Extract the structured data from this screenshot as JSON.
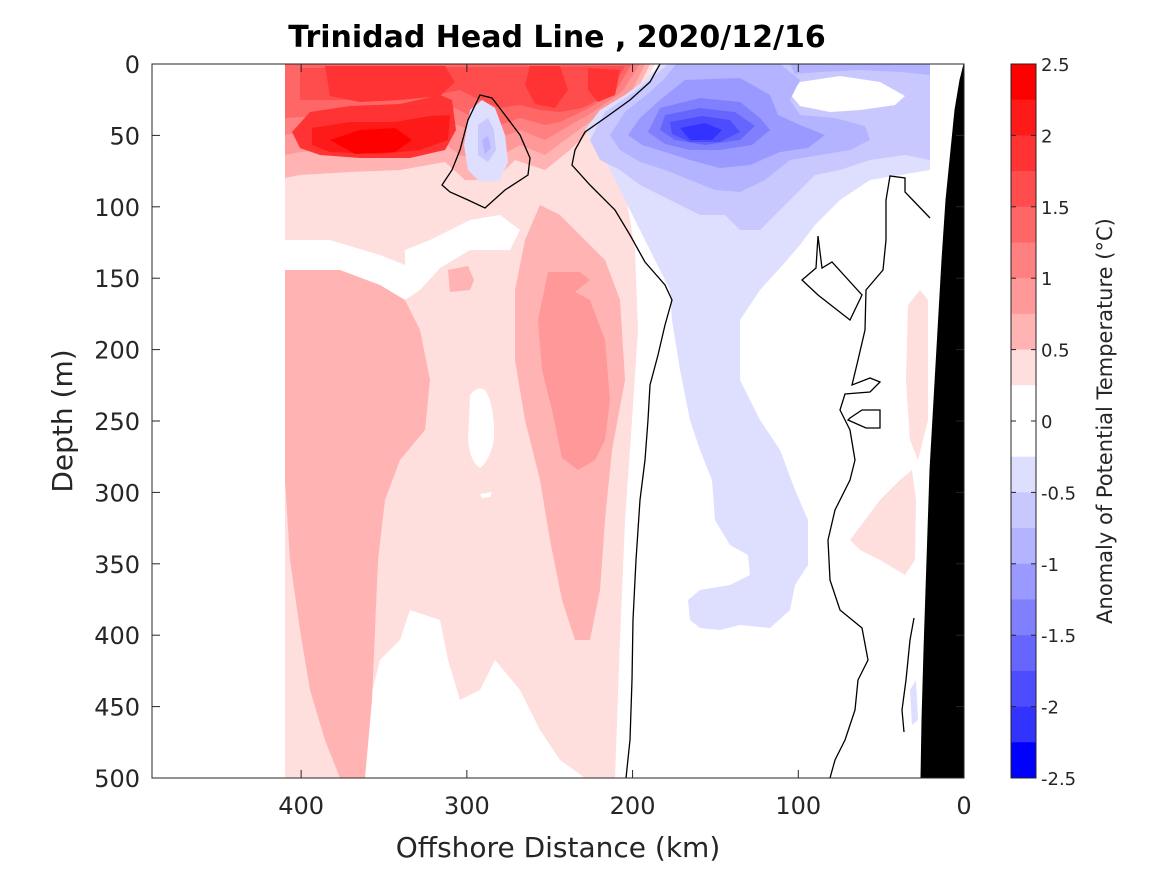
{
  "chart_data": {
    "type": "heatmap",
    "title": "Trinidad Head Line , 2020/12/16",
    "xlabel": "Offshore Distance (km)",
    "ylabel": "Depth (m)",
    "xlim": [
      490,
      0
    ],
    "ylim": [
      500,
      0
    ],
    "x_reversed": true,
    "y_reversed": true,
    "x_ticks": [
      400,
      300,
      200,
      100,
      0
    ],
    "x_tick_labels": [
      "400",
      "300",
      "200",
      "100",
      "0"
    ],
    "y_ticks": [
      0,
      50,
      100,
      150,
      200,
      250,
      300,
      350,
      400,
      450,
      500
    ],
    "y_tick_labels": [
      "0",
      "50",
      "100",
      "150",
      "200",
      "250",
      "300",
      "350",
      "400",
      "450",
      "500"
    ],
    "data_extent_km": [
      410,
      20
    ],
    "grid": false,
    "colorbar": {
      "label": "Anomaly of Potential Temperature (°C)",
      "range": [
        -2.5,
        2.5
      ],
      "step": 0.25,
      "tick_values": [
        2.5,
        2,
        1.5,
        1,
        0.5,
        0,
        -0.5,
        -1,
        -1.5,
        -2,
        -2.5
      ],
      "tick_labels": [
        "2.5",
        "2",
        "1.5",
        "1",
        "0.5",
        "0",
        "-0.5",
        "-1",
        "-1.5",
        "-2",
        "-2.5"
      ],
      "bands": [
        {
          "min": 2.25,
          "max": 2.5,
          "color": "#ff0000"
        },
        {
          "min": 2.0,
          "max": 2.25,
          "color": "#ff1a1a"
        },
        {
          "min": 1.75,
          "max": 2.0,
          "color": "#ff3333"
        },
        {
          "min": 1.5,
          "max": 1.75,
          "color": "#ff4d4d"
        },
        {
          "min": 1.25,
          "max": 1.5,
          "color": "#ff6666"
        },
        {
          "min": 1.0,
          "max": 1.25,
          "color": "#ff8080"
        },
        {
          "min": 0.75,
          "max": 1.0,
          "color": "#ff9999"
        },
        {
          "min": 0.5,
          "max": 0.75,
          "color": "#ffb3b3"
        },
        {
          "min": 0.25,
          "max": 0.5,
          "color": "#ffdede"
        },
        {
          "min": 0.0,
          "max": 0.25,
          "color": "#ffffff"
        },
        {
          "min": -0.25,
          "max": 0.0,
          "color": "#ffffff"
        },
        {
          "min": -0.5,
          "max": -0.25,
          "color": "#dedeff"
        },
        {
          "min": -0.75,
          "max": -0.5,
          "color": "#c8c8ff"
        },
        {
          "min": -1.0,
          "max": -0.75,
          "color": "#b3b3ff"
        },
        {
          "min": -1.25,
          "max": -1.0,
          "color": "#9999ff"
        },
        {
          "min": -1.5,
          "max": -1.25,
          "color": "#8080ff"
        },
        {
          "min": -1.75,
          "max": -1.5,
          "color": "#6666ff"
        },
        {
          "min": -2.0,
          "max": -1.75,
          "color": "#4d4dff"
        },
        {
          "min": -2.25,
          "max": -2.0,
          "color": "#3333ff"
        },
        {
          "min": -2.5,
          "max": -2.25,
          "color": "#0000ff"
        }
      ]
    },
    "zero_contour_color": "#000000",
    "bathymetry_color": "#000000"
  }
}
